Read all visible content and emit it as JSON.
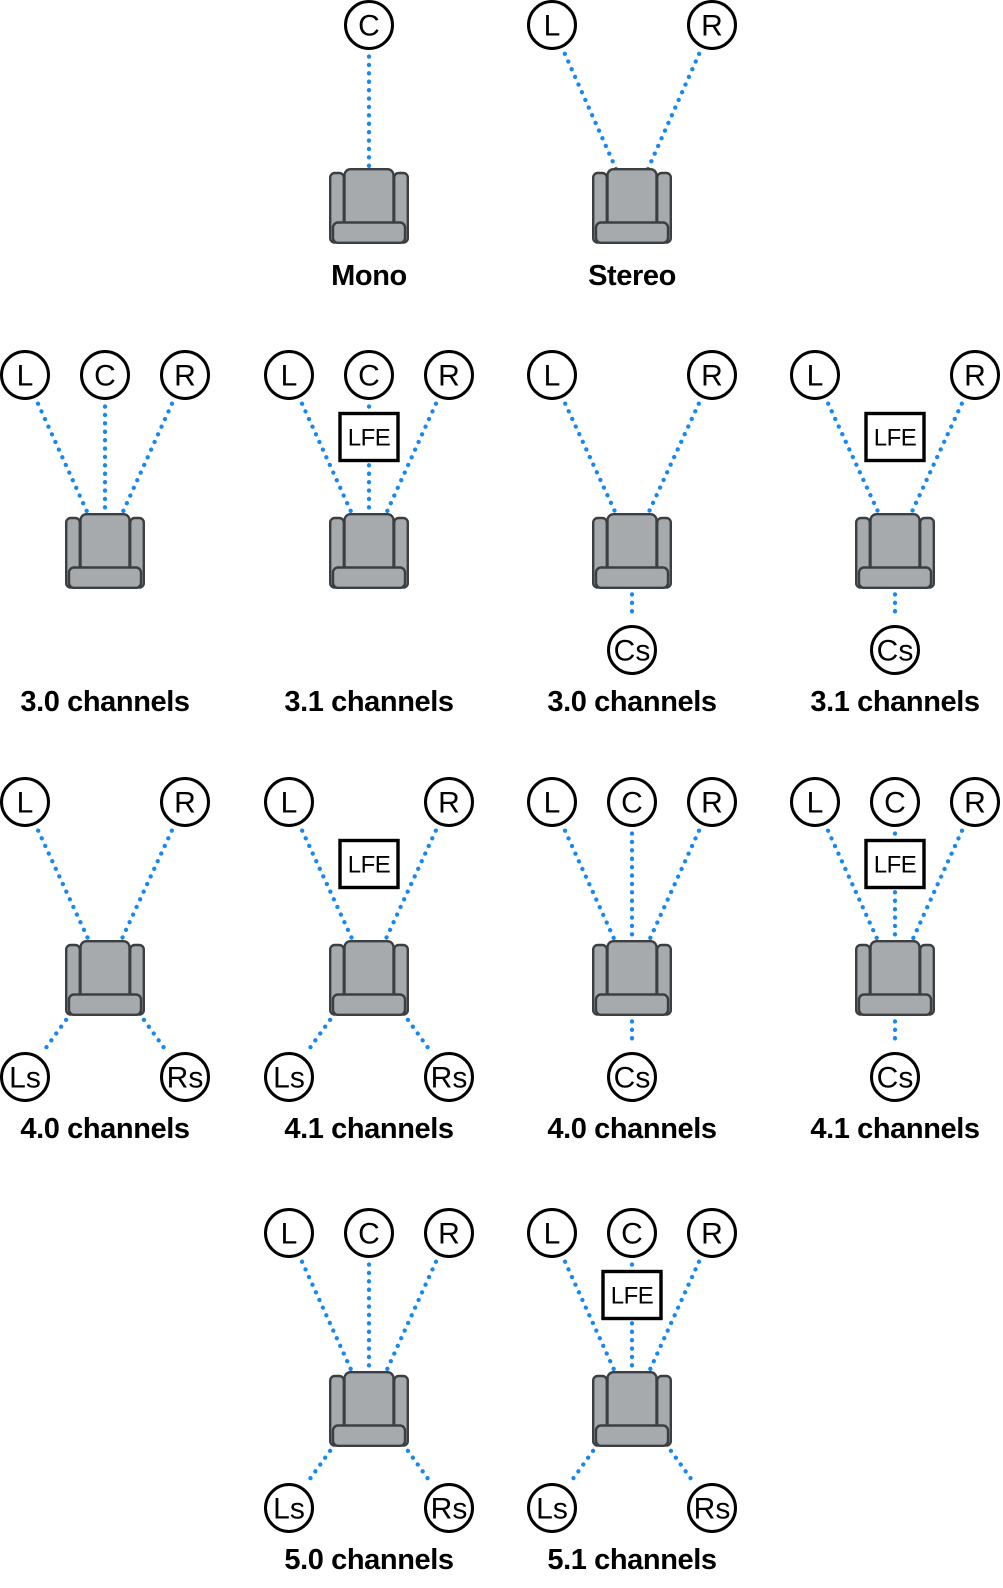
{
  "page": {
    "background_color": "#FFFFFF",
    "description_labels": {
      "lfe": "LFE"
    }
  },
  "style": {
    "line_color": "#1787F2",
    "node_stroke_color": "#000000",
    "node_fill_color": "#FFFFFF",
    "text_color": "#000000",
    "chair_fill": "#A7AAAD",
    "chair_stroke": "#3C3F42",
    "page_bg": "#FFFFFF"
  },
  "diagrams": [
    {
      "id": "mono",
      "label": "Mono",
      "row": 1,
      "col": 2,
      "top_speakers": [
        "C"
      ],
      "lfe": false,
      "bottom_speakers": []
    },
    {
      "id": "stereo",
      "label": "Stereo",
      "row": 1,
      "col": 3,
      "top_speakers": [
        "L",
        "R"
      ],
      "lfe": false,
      "bottom_speakers": []
    },
    {
      "id": "3-0-front",
      "label": "3.0 channels",
      "row": 2,
      "col": 1,
      "top_speakers": [
        "L",
        "C",
        "R"
      ],
      "lfe": false,
      "bottom_speakers": []
    },
    {
      "id": "3-1-front",
      "label": "3.1 channels",
      "row": 2,
      "col": 2,
      "top_speakers": [
        "L",
        "C",
        "R"
      ],
      "lfe": true,
      "bottom_speakers": []
    },
    {
      "id": "3-0-surround",
      "label": "3.0 channels",
      "row": 2,
      "col": 3,
      "top_speakers": [
        "L",
        "R"
      ],
      "lfe": false,
      "bottom_speakers": [
        "Cs"
      ]
    },
    {
      "id": "3-1-surround",
      "label": "3.1 channels",
      "row": 2,
      "col": 4,
      "top_speakers": [
        "L",
        "R"
      ],
      "lfe": true,
      "bottom_speakers": [
        "Cs"
      ]
    },
    {
      "id": "4-0-quad",
      "label": "4.0 channels",
      "row": 3,
      "col": 1,
      "top_speakers": [
        "L",
        "R"
      ],
      "lfe": false,
      "bottom_speakers": [
        "Ls",
        "Rs"
      ]
    },
    {
      "id": "4-1-quad",
      "label": "4.1 channels",
      "row": 3,
      "col": 2,
      "top_speakers": [
        "L",
        "R"
      ],
      "lfe": true,
      "bottom_speakers": [
        "Ls",
        "Rs"
      ]
    },
    {
      "id": "4-0-surround",
      "label": "4.0 channels",
      "row": 3,
      "col": 3,
      "top_speakers": [
        "L",
        "C",
        "R"
      ],
      "lfe": false,
      "bottom_speakers": [
        "Cs"
      ]
    },
    {
      "id": "4-1-surround",
      "label": "4.1 channels",
      "row": 3,
      "col": 4,
      "top_speakers": [
        "L",
        "C",
        "R"
      ],
      "lfe": true,
      "bottom_speakers": [
        "Cs"
      ]
    },
    {
      "id": "5-0",
      "label": "5.0 channels",
      "row": 4,
      "col": 2,
      "top_speakers": [
        "L",
        "C",
        "R"
      ],
      "lfe": false,
      "bottom_speakers": [
        "Ls",
        "Rs"
      ]
    },
    {
      "id": "5-1",
      "label": "5.1 channels",
      "row": 4,
      "col": 3,
      "top_speakers": [
        "L",
        "C",
        "R"
      ],
      "lfe": true,
      "bottom_speakers": [
        "Ls",
        "Rs"
      ]
    }
  ]
}
